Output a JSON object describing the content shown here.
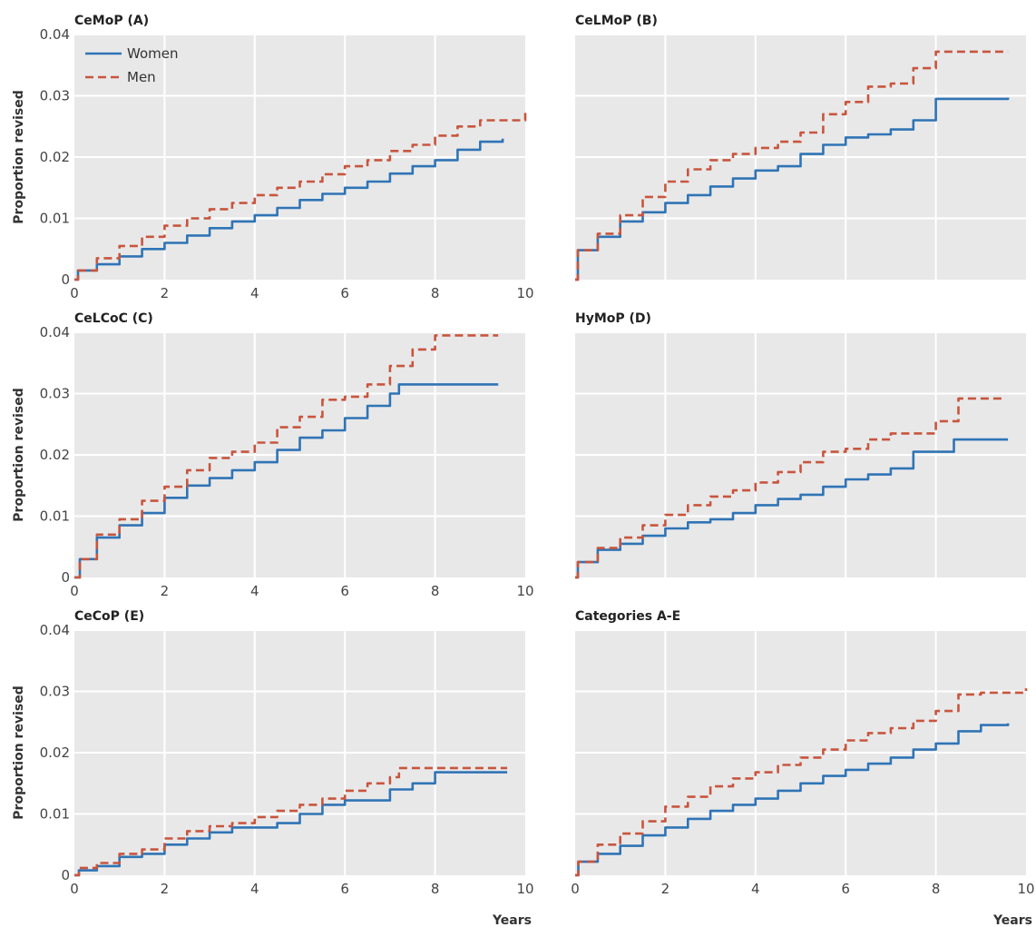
{
  "colors": {
    "women": "#2f74b5",
    "men": "#c8553d",
    "plot_background": "#e8e8e9",
    "grid": "#ffffff"
  },
  "chart_data": [
    {
      "type": "line",
      "title": "CeMoP (A)",
      "xlabel": "",
      "ylabel": "Proportion revised",
      "xlim": [
        0,
        10
      ],
      "ylim": [
        0,
        0.04
      ],
      "x_ticks": [
        "0",
        "2",
        "4",
        "6",
        "8",
        "10"
      ],
      "y_ticks": [
        "0",
        "0.01",
        "0.02",
        "0.03",
        "0.04"
      ],
      "grid": true,
      "legend": {
        "placement": "top-left",
        "entries": [
          "Women",
          "Men"
        ]
      },
      "series": [
        {
          "name": "Women",
          "color": "#2f74b5",
          "dash": "solid",
          "x": [
            0,
            0.05,
            0.08,
            0.5,
            1,
            1.5,
            2,
            2.5,
            3,
            3.5,
            4,
            4.5,
            5,
            5.5,
            6,
            6.5,
            7,
            7.5,
            8,
            8.5,
            9,
            9.5
          ],
          "y": [
            0,
            0,
            0.0015,
            0.0025,
            0.0038,
            0.005,
            0.006,
            0.0072,
            0.0084,
            0.0095,
            0.0105,
            0.0117,
            0.013,
            0.014,
            0.015,
            0.016,
            0.0173,
            0.0185,
            0.0195,
            0.0212,
            0.0225,
            0.023
          ]
        },
        {
          "name": "Men",
          "color": "#c8553d",
          "dash": "dashed",
          "x": [
            0,
            0.05,
            0.08,
            0.5,
            1,
            1.5,
            2,
            2.5,
            3,
            3.5,
            4,
            4.5,
            5,
            5.5,
            6,
            6.5,
            7,
            7.5,
            8,
            8.5,
            9,
            10
          ],
          "y": [
            0,
            0,
            0.0015,
            0.0035,
            0.0055,
            0.007,
            0.0088,
            0.01,
            0.0115,
            0.0125,
            0.0138,
            0.015,
            0.016,
            0.0172,
            0.0185,
            0.0195,
            0.021,
            0.022,
            0.0235,
            0.025,
            0.026,
            0.0272
          ]
        }
      ]
    },
    {
      "type": "line",
      "title": "CeLMoP (B)",
      "xlabel": "",
      "ylabel": "",
      "xlim": [
        0,
        10
      ],
      "ylim": [
        0,
        0.04
      ],
      "x_ticks": [],
      "y_ticks": [],
      "grid": true,
      "series": [
        {
          "name": "Women",
          "color": "#2f74b5",
          "dash": "solid",
          "x": [
            0,
            0.05,
            0.06,
            0.5,
            1,
            1.5,
            2,
            2.5,
            3,
            3.5,
            4,
            4.5,
            5,
            5.5,
            6,
            6.5,
            7,
            7.5,
            8,
            9.6
          ],
          "y": [
            0,
            0,
            0.0048,
            0.007,
            0.0095,
            0.011,
            0.0125,
            0.0138,
            0.0152,
            0.0165,
            0.0178,
            0.0185,
            0.0205,
            0.022,
            0.0232,
            0.0237,
            0.0245,
            0.026,
            0.0295,
            0.0297
          ]
        },
        {
          "name": "Men",
          "color": "#c8553d",
          "dash": "dashed",
          "x": [
            0,
            0.05,
            0.06,
            0.5,
            1,
            1.5,
            2,
            2.5,
            3,
            3.5,
            4,
            4.5,
            5,
            5.5,
            6,
            6.5,
            7,
            7.5,
            8,
            9.6
          ],
          "y": [
            0,
            0,
            0.0048,
            0.0075,
            0.0105,
            0.0135,
            0.016,
            0.018,
            0.0195,
            0.0205,
            0.0215,
            0.0225,
            0.024,
            0.027,
            0.029,
            0.0315,
            0.032,
            0.0345,
            0.0372,
            0.0372
          ]
        }
      ]
    },
    {
      "type": "line",
      "title": "CeLCoC (C)",
      "xlabel": "",
      "ylabel": "Proportion revised",
      "xlim": [
        0,
        10
      ],
      "ylim": [
        0,
        0.04
      ],
      "x_ticks": [
        "0",
        "2",
        "4",
        "6",
        "8",
        "10"
      ],
      "y_ticks": [
        "0",
        "0.01",
        "0.02",
        "0.03",
        "0.04"
      ],
      "grid": true,
      "series": [
        {
          "name": "Women",
          "color": "#2f74b5",
          "dash": "solid",
          "x": [
            0,
            0.1,
            0.12,
            0.5,
            1,
            1.5,
            2,
            2.5,
            3,
            3.5,
            4,
            4.5,
            5,
            5.5,
            6,
            6.5,
            7,
            7.2,
            8,
            9.4
          ],
          "y": [
            0,
            0,
            0.003,
            0.0065,
            0.0085,
            0.0105,
            0.013,
            0.015,
            0.0162,
            0.0175,
            0.0188,
            0.0208,
            0.0228,
            0.024,
            0.026,
            0.028,
            0.03,
            0.0315,
            0.0315,
            0.0315
          ]
        },
        {
          "name": "Men",
          "color": "#c8553d",
          "dash": "dashed",
          "x": [
            0,
            0.1,
            0.12,
            0.5,
            1,
            1.5,
            2,
            2.5,
            3,
            3.5,
            4,
            4.5,
            5,
            5.5,
            6,
            6.5,
            7,
            7.5,
            8,
            9.4
          ],
          "y": [
            0,
            0,
            0.003,
            0.007,
            0.0095,
            0.0125,
            0.0148,
            0.0175,
            0.0195,
            0.0205,
            0.022,
            0.0245,
            0.0262,
            0.029,
            0.0295,
            0.0315,
            0.0345,
            0.0372,
            0.0395,
            0.0395
          ]
        }
      ]
    },
    {
      "type": "line",
      "title": "HyMoP (D)",
      "xlabel": "",
      "ylabel": "",
      "xlim": [
        0,
        10
      ],
      "ylim": [
        0,
        0.04
      ],
      "x_ticks": [],
      "y_ticks": [],
      "grid": true,
      "series": [
        {
          "name": "Women",
          "color": "#2f74b5",
          "dash": "solid",
          "x": [
            0,
            0.05,
            0.06,
            0.5,
            1,
            1.5,
            2,
            2.5,
            3,
            3.5,
            4,
            4.5,
            5,
            5.5,
            6,
            6.5,
            7,
            7.5,
            8,
            8.4,
            9.6
          ],
          "y": [
            0,
            0,
            0.0025,
            0.0045,
            0.0055,
            0.0068,
            0.008,
            0.009,
            0.0095,
            0.0105,
            0.0118,
            0.0128,
            0.0135,
            0.0148,
            0.016,
            0.0168,
            0.0178,
            0.0205,
            0.0205,
            0.0225,
            0.0225
          ]
        },
        {
          "name": "Men",
          "color": "#c8553d",
          "dash": "dashed",
          "x": [
            0,
            0.05,
            0.06,
            0.5,
            1,
            1.5,
            2,
            2.5,
            3,
            3.5,
            4,
            4.5,
            5,
            5.5,
            6,
            6.5,
            7,
            7.5,
            8,
            8.5,
            9.5
          ],
          "y": [
            0,
            0,
            0.0025,
            0.0048,
            0.0065,
            0.0085,
            0.0102,
            0.0118,
            0.0132,
            0.0142,
            0.0155,
            0.0172,
            0.0188,
            0.0205,
            0.021,
            0.0225,
            0.0235,
            0.0235,
            0.0255,
            0.0292,
            0.0292
          ]
        }
      ]
    },
    {
      "type": "line",
      "title": "CeCoP (E)",
      "xlabel": "Years",
      "ylabel": "Proportion revised",
      "xlim": [
        0,
        10
      ],
      "ylim": [
        0,
        0.04
      ],
      "x_ticks": [
        "0",
        "2",
        "4",
        "6",
        "8",
        "10"
      ],
      "y_ticks": [
        "0",
        "0.01",
        "0.02",
        "0.03",
        "0.04"
      ],
      "grid": true,
      "series": [
        {
          "name": "Women",
          "color": "#2f74b5",
          "dash": "solid",
          "x": [
            0,
            0.05,
            0.1,
            0.5,
            1,
            1.5,
            2,
            2.5,
            3,
            3.5,
            4,
            4.5,
            5,
            5.5,
            6,
            6.5,
            7,
            7.5,
            8,
            9.6
          ],
          "y": [
            0,
            0,
            0.0008,
            0.0015,
            0.003,
            0.0035,
            0.005,
            0.006,
            0.007,
            0.0078,
            0.0078,
            0.0085,
            0.01,
            0.0115,
            0.0122,
            0.0122,
            0.014,
            0.015,
            0.0168,
            0.0168
          ]
        },
        {
          "name": "Men",
          "color": "#c8553d",
          "dash": "dashed",
          "x": [
            0,
            0.05,
            0.1,
            0.5,
            1,
            1.5,
            2,
            2.5,
            3,
            3.5,
            4,
            4.5,
            5,
            5.5,
            6,
            6.5,
            7,
            7.2,
            8,
            9.6
          ],
          "y": [
            0,
            0,
            0.0012,
            0.002,
            0.0035,
            0.0042,
            0.006,
            0.0072,
            0.008,
            0.0085,
            0.0095,
            0.0105,
            0.0115,
            0.0125,
            0.0138,
            0.015,
            0.016,
            0.0175,
            0.0175,
            0.0175
          ]
        }
      ]
    },
    {
      "type": "line",
      "title": "Categories A-E",
      "xlabel": "Years",
      "ylabel": "",
      "xlim": [
        0,
        10
      ],
      "ylim": [
        0,
        0.04
      ],
      "x_ticks": [
        "0",
        "2",
        "4",
        "6",
        "8",
        "10"
      ],
      "y_ticks": [],
      "grid": true,
      "series": [
        {
          "name": "Women",
          "color": "#2f74b5",
          "dash": "solid",
          "x": [
            0,
            0.05,
            0.07,
            0.5,
            1,
            1.5,
            2,
            2.5,
            3,
            3.5,
            4,
            4.5,
            5,
            5.5,
            6,
            6.5,
            7,
            7.5,
            8,
            8.5,
            9,
            9.6
          ],
          "y": [
            0,
            0,
            0.0022,
            0.0035,
            0.0048,
            0.0065,
            0.0078,
            0.0092,
            0.0105,
            0.0115,
            0.0125,
            0.0138,
            0.015,
            0.0162,
            0.0172,
            0.0182,
            0.0192,
            0.0205,
            0.0215,
            0.0235,
            0.0245,
            0.0248
          ]
        },
        {
          "name": "Men",
          "color": "#c8553d",
          "dash": "dashed",
          "x": [
            0,
            0.05,
            0.07,
            0.5,
            1,
            1.5,
            2,
            2.5,
            3,
            3.5,
            4,
            4.5,
            5,
            5.5,
            6,
            6.5,
            7,
            7.5,
            8,
            8.5,
            9,
            10
          ],
          "y": [
            0,
            0,
            0.0022,
            0.005,
            0.0068,
            0.0088,
            0.0112,
            0.0128,
            0.0145,
            0.0158,
            0.0168,
            0.018,
            0.0192,
            0.0205,
            0.022,
            0.0232,
            0.024,
            0.0252,
            0.0268,
            0.0295,
            0.0298,
            0.0305
          ]
        }
      ]
    }
  ]
}
